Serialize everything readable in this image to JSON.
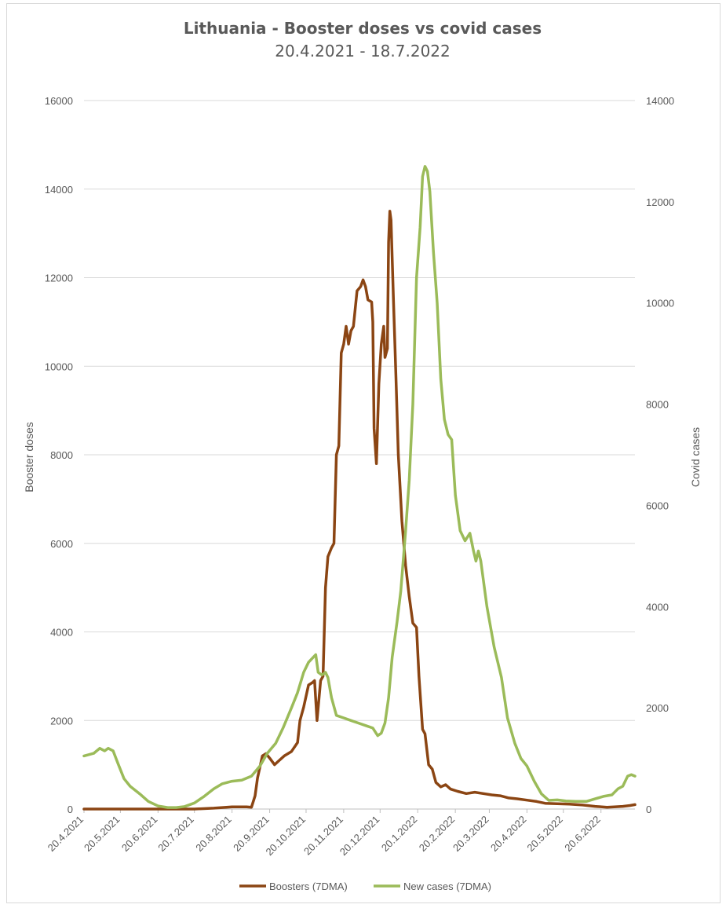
{
  "chart_data": {
    "type": "line",
    "title": "Lithuania - Booster doses vs covid cases",
    "subtitle": "20.4.2021 - 18.7.2022",
    "y_left_label": "Booster doses",
    "y_right_label": "Covid cases",
    "y_left_range": [
      0,
      16000
    ],
    "y_right_range": [
      0,
      14000
    ],
    "y_left_ticks": [
      "0",
      "2000",
      "4000",
      "6000",
      "8000",
      "10000",
      "12000",
      "14000",
      "16000"
    ],
    "y_right_ticks": [
      "0",
      "2000",
      "4000",
      "6000",
      "8000",
      "10000",
      "12000",
      "14000"
    ],
    "x_start": "2021-04-20",
    "x_end": "2022-07-18",
    "x_ticks": [
      "20.4.2021",
      "20.5.2021",
      "20.6.2021",
      "20.7.2021",
      "20.8.2021",
      "20.9.2021",
      "20.10.2021",
      "20.11.2021",
      "20.12.2021",
      "20.1.2022",
      "20.2.2022",
      "20.3.2022",
      "20.4.2022",
      "20.5.2022",
      "20.6.2022"
    ],
    "grid": "horizontal",
    "legend_position": "bottom",
    "series": [
      {
        "name": "Boosters (7DMA)",
        "axis": "left",
        "color": "#8B4513",
        "points": [
          [
            "2021-04-20",
            0
          ],
          [
            "2021-06-01",
            0
          ],
          [
            "2021-07-20",
            0
          ],
          [
            "2021-08-05",
            20
          ],
          [
            "2021-08-20",
            50
          ],
          [
            "2021-09-01",
            50
          ],
          [
            "2021-09-05",
            40
          ],
          [
            "2021-09-08",
            300
          ],
          [
            "2021-09-10",
            700
          ],
          [
            "2021-09-14",
            1200
          ],
          [
            "2021-09-17",
            1250
          ],
          [
            "2021-09-20",
            1150
          ],
          [
            "2021-09-24",
            1000
          ],
          [
            "2021-09-28",
            1100
          ],
          [
            "2021-10-02",
            1200
          ],
          [
            "2021-10-08",
            1300
          ],
          [
            "2021-10-13",
            1500
          ],
          [
            "2021-10-15",
            2000
          ],
          [
            "2021-10-18",
            2300
          ],
          [
            "2021-10-22",
            2800
          ],
          [
            "2021-10-25",
            2850
          ],
          [
            "2021-10-27",
            2900
          ],
          [
            "2021-10-29",
            2000
          ],
          [
            "2021-11-01",
            2900
          ],
          [
            "2021-11-03",
            3000
          ],
          [
            "2021-11-05",
            5000
          ],
          [
            "2021-11-07",
            5700
          ],
          [
            "2021-11-10",
            5900
          ],
          [
            "2021-11-12",
            6000
          ],
          [
            "2021-11-14",
            8000
          ],
          [
            "2021-11-16",
            8200
          ],
          [
            "2021-11-18",
            10300
          ],
          [
            "2021-11-20",
            10500
          ],
          [
            "2021-11-22",
            10900
          ],
          [
            "2021-11-24",
            10500
          ],
          [
            "2021-11-26",
            10800
          ],
          [
            "2021-11-28",
            10900
          ],
          [
            "2021-12-01",
            11700
          ],
          [
            "2021-12-04",
            11800
          ],
          [
            "2021-12-06",
            11950
          ],
          [
            "2021-12-08",
            11800
          ],
          [
            "2021-12-10",
            11500
          ],
          [
            "2021-12-13",
            11450
          ],
          [
            "2021-12-14",
            11000
          ],
          [
            "2021-12-15",
            8600
          ],
          [
            "2021-12-17",
            7800
          ],
          [
            "2021-12-19",
            9600
          ],
          [
            "2021-12-21",
            10500
          ],
          [
            "2021-12-23",
            10900
          ],
          [
            "2021-12-24",
            10200
          ],
          [
            "2021-12-26",
            10400
          ],
          [
            "2021-12-27",
            12800
          ],
          [
            "2021-12-28",
            13500
          ],
          [
            "2021-12-29",
            13300
          ],
          [
            "2021-12-31",
            11500
          ],
          [
            "2022-01-02",
            9800
          ],
          [
            "2022-01-04",
            8000
          ],
          [
            "2022-01-07",
            6500
          ],
          [
            "2022-01-10",
            5500
          ],
          [
            "2022-01-13",
            4800
          ],
          [
            "2022-01-16",
            4200
          ],
          [
            "2022-01-19",
            4100
          ],
          [
            "2022-01-21",
            3000
          ],
          [
            "2022-01-24",
            1800
          ],
          [
            "2022-01-26",
            1700
          ],
          [
            "2022-01-29",
            1000
          ],
          [
            "2022-02-01",
            900
          ],
          [
            "2022-02-04",
            600
          ],
          [
            "2022-02-08",
            500
          ],
          [
            "2022-02-12",
            550
          ],
          [
            "2022-02-16",
            450
          ],
          [
            "2022-02-22",
            400
          ],
          [
            "2022-03-01",
            350
          ],
          [
            "2022-03-08",
            380
          ],
          [
            "2022-03-15",
            350
          ],
          [
            "2022-03-22",
            320
          ],
          [
            "2022-03-29",
            300
          ],
          [
            "2022-04-05",
            250
          ],
          [
            "2022-04-12",
            230
          ],
          [
            "2022-04-20",
            200
          ],
          [
            "2022-04-28",
            170
          ],
          [
            "2022-05-05",
            130
          ],
          [
            "2022-05-15",
            120
          ],
          [
            "2022-05-25",
            110
          ],
          [
            "2022-06-05",
            90
          ],
          [
            "2022-06-15",
            60
          ],
          [
            "2022-06-25",
            40
          ],
          [
            "2022-07-01",
            50
          ],
          [
            "2022-07-08",
            60
          ],
          [
            "2022-07-14",
            80
          ],
          [
            "2022-07-18",
            100
          ]
        ]
      },
      {
        "name": "New cases (7DMA)",
        "axis": "right",
        "color": "#9BBB59",
        "points": [
          [
            "2021-04-20",
            1050
          ],
          [
            "2021-04-28",
            1100
          ],
          [
            "2021-05-03",
            1200
          ],
          [
            "2021-05-07",
            1150
          ],
          [
            "2021-05-10",
            1200
          ],
          [
            "2021-05-14",
            1150
          ],
          [
            "2021-05-18",
            900
          ],
          [
            "2021-05-23",
            600
          ],
          [
            "2021-05-28",
            450
          ],
          [
            "2021-06-05",
            300
          ],
          [
            "2021-06-12",
            150
          ],
          [
            "2021-06-20",
            60
          ],
          [
            "2021-06-28",
            30
          ],
          [
            "2021-07-05",
            30
          ],
          [
            "2021-07-12",
            50
          ],
          [
            "2021-07-20",
            120
          ],
          [
            "2021-07-28",
            250
          ],
          [
            "2021-08-05",
            400
          ],
          [
            "2021-08-12",
            500
          ],
          [
            "2021-08-20",
            550
          ],
          [
            "2021-08-28",
            570
          ],
          [
            "2021-09-05",
            650
          ],
          [
            "2021-09-12",
            850
          ],
          [
            "2021-09-18",
            1100
          ],
          [
            "2021-09-25",
            1300
          ],
          [
            "2021-10-01",
            1600
          ],
          [
            "2021-10-08",
            2000
          ],
          [
            "2021-10-13",
            2300
          ],
          [
            "2021-10-18",
            2700
          ],
          [
            "2021-10-22",
            2900
          ],
          [
            "2021-10-26",
            3000
          ],
          [
            "2021-10-28",
            3050
          ],
          [
            "2021-10-30",
            2700
          ],
          [
            "2021-11-02",
            2650
          ],
          [
            "2021-11-05",
            2700
          ],
          [
            "2021-11-07",
            2600
          ],
          [
            "2021-11-10",
            2200
          ],
          [
            "2021-11-14",
            1850
          ],
          [
            "2021-11-20",
            1800
          ],
          [
            "2021-11-26",
            1750
          ],
          [
            "2021-12-02",
            1700
          ],
          [
            "2021-12-08",
            1650
          ],
          [
            "2021-12-14",
            1600
          ],
          [
            "2021-12-18",
            1450
          ],
          [
            "2021-12-21",
            1500
          ],
          [
            "2021-12-24",
            1700
          ],
          [
            "2021-12-27",
            2200
          ],
          [
            "2021-12-30",
            3000
          ],
          [
            "2022-01-03",
            3700
          ],
          [
            "2022-01-06",
            4300
          ],
          [
            "2022-01-10",
            5500
          ],
          [
            "2022-01-13",
            6500
          ],
          [
            "2022-01-16",
            8000
          ],
          [
            "2022-01-19",
            10500
          ],
          [
            "2022-01-22",
            11500
          ],
          [
            "2022-01-24",
            12500
          ],
          [
            "2022-01-26",
            12700
          ],
          [
            "2022-01-28",
            12600
          ],
          [
            "2022-01-30",
            12200
          ],
          [
            "2022-02-02",
            11000
          ],
          [
            "2022-02-05",
            10000
          ],
          [
            "2022-02-08",
            8500
          ],
          [
            "2022-02-11",
            7700
          ],
          [
            "2022-02-14",
            7400
          ],
          [
            "2022-02-17",
            7300
          ],
          [
            "2022-02-20",
            6200
          ],
          [
            "2022-02-24",
            5500
          ],
          [
            "2022-02-28",
            5300
          ],
          [
            "2022-03-04",
            5450
          ],
          [
            "2022-03-07",
            5100
          ],
          [
            "2022-03-09",
            4900
          ],
          [
            "2022-03-11",
            5100
          ],
          [
            "2022-03-13",
            4900
          ],
          [
            "2022-03-18",
            4000
          ],
          [
            "2022-03-24",
            3200
          ],
          [
            "2022-03-30",
            2600
          ],
          [
            "2022-04-04",
            1800
          ],
          [
            "2022-04-10",
            1300
          ],
          [
            "2022-04-15",
            1000
          ],
          [
            "2022-04-20",
            850
          ],
          [
            "2022-04-26",
            550
          ],
          [
            "2022-05-02",
            300
          ],
          [
            "2022-05-08",
            170
          ],
          [
            "2022-05-15",
            180
          ],
          [
            "2022-05-22",
            160
          ],
          [
            "2022-05-30",
            150
          ],
          [
            "2022-06-08",
            150
          ],
          [
            "2022-06-15",
            200
          ],
          [
            "2022-06-22",
            250
          ],
          [
            "2022-06-29",
            280
          ],
          [
            "2022-07-04",
            400
          ],
          [
            "2022-07-08",
            450
          ],
          [
            "2022-07-12",
            650
          ],
          [
            "2022-07-15",
            680
          ],
          [
            "2022-07-18",
            650
          ]
        ]
      }
    ]
  }
}
